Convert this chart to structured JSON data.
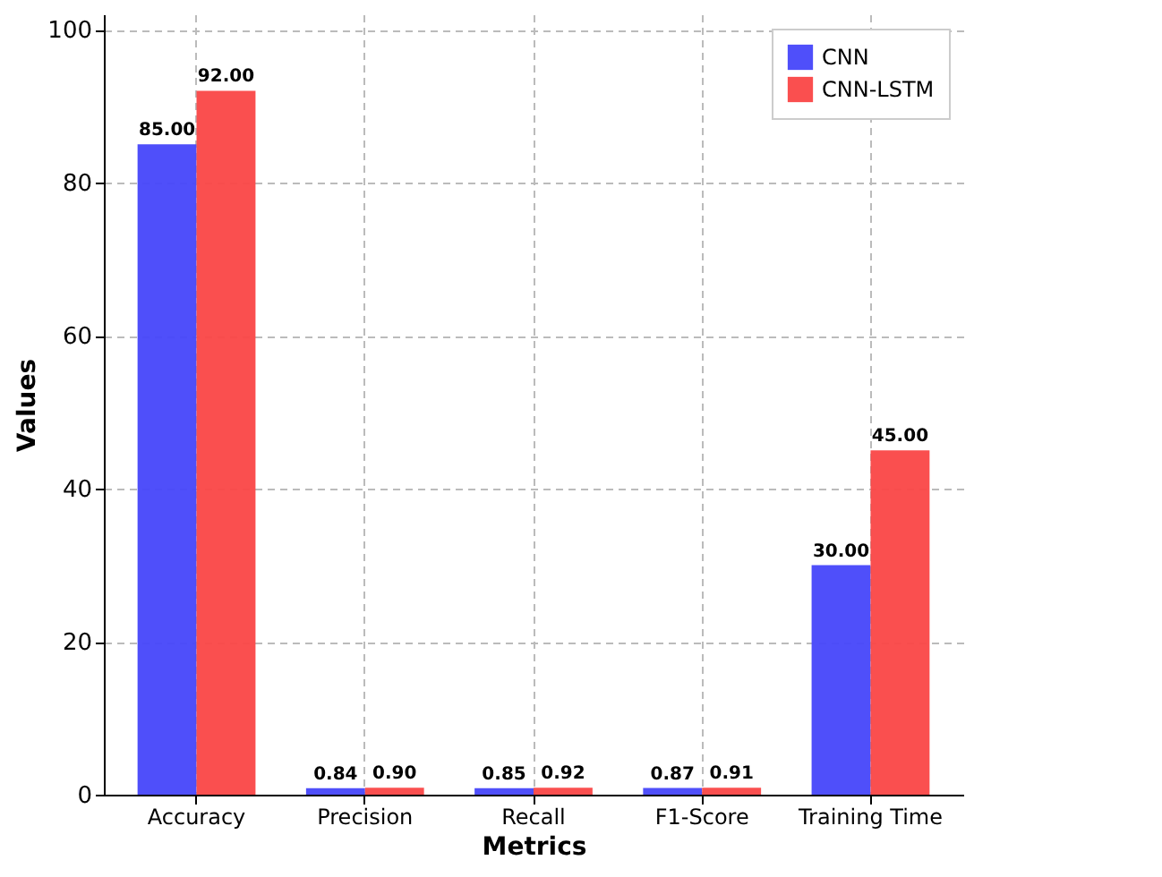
{
  "chart_data": {
    "type": "bar",
    "xlabel": "Metrics",
    "ylabel": "Values",
    "categories": [
      "Accuracy",
      "Precision",
      "Recall",
      "F1-Score",
      "Training Time"
    ],
    "series": [
      {
        "name": "CNN",
        "color": "#4646fa",
        "values": [
          85,
          0.84,
          0.85,
          0.87,
          30
        ],
        "value_labels": [
          "85.00",
          "0.84",
          "0.85",
          "0.87",
          "30.00"
        ]
      },
      {
        "name": "CNN-LSTM",
        "color": "#fa4646",
        "values": [
          92,
          0.9,
          0.92,
          0.91,
          45
        ],
        "value_labels": [
          "92.00",
          "0.90",
          "0.92",
          "0.91",
          "45.00"
        ]
      }
    ],
    "ylim": [
      0,
      102
    ],
    "yticks": [
      0,
      20,
      40,
      60,
      80,
      100
    ],
    "grid": true,
    "legend": "top right"
  }
}
